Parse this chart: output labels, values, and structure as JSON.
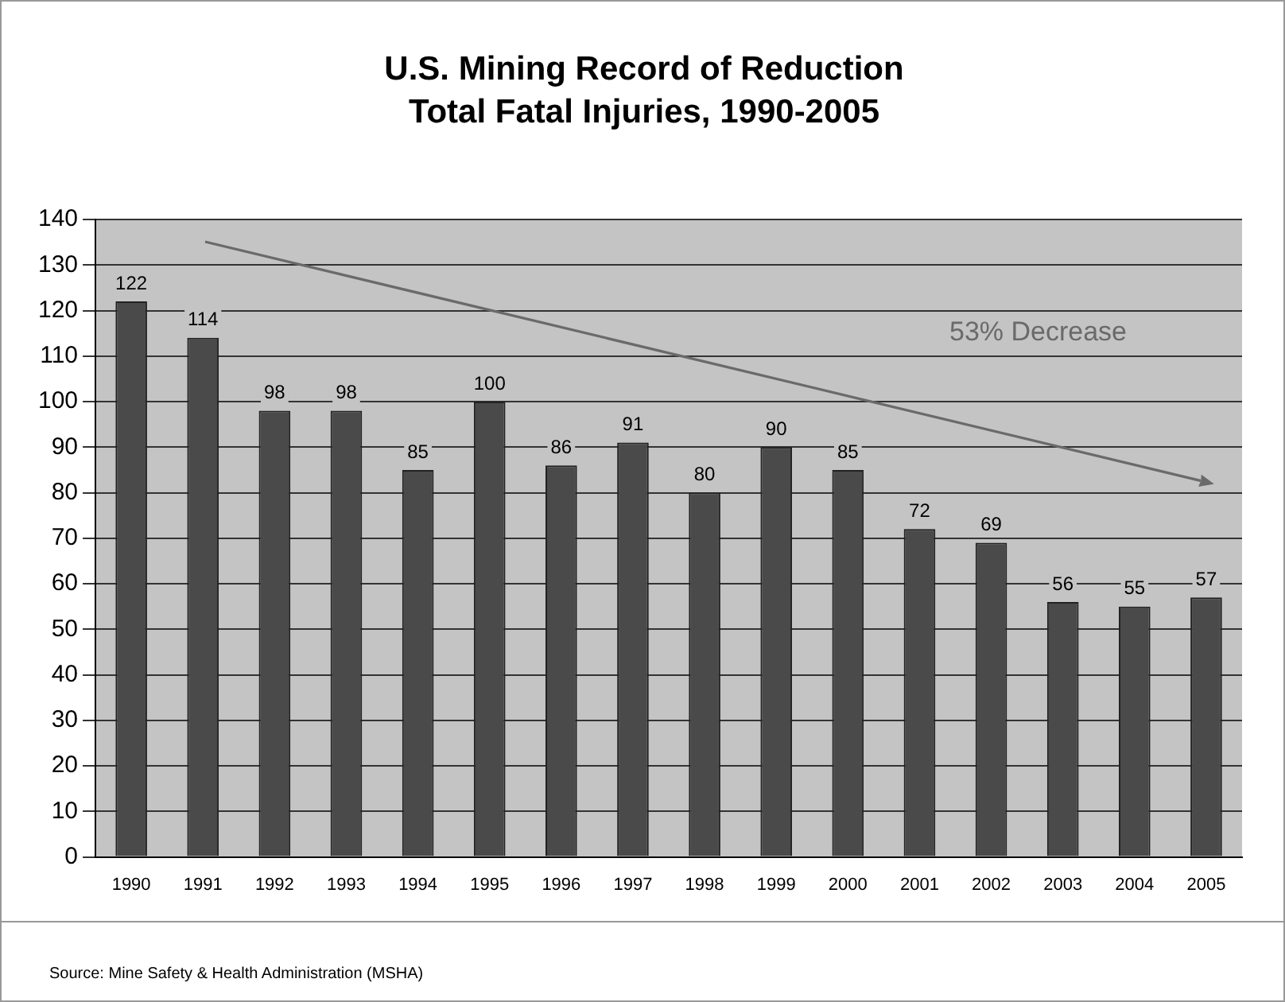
{
  "chart_data": {
    "type": "bar",
    "title": "U.S. Mining Record of Reduction",
    "subtitle": "Total Fatal Injuries, 1990-2005",
    "categories": [
      "1990",
      "1991",
      "1992",
      "1993",
      "1994",
      "1995",
      "1996",
      "1997",
      "1998",
      "1999",
      "2000",
      "2001",
      "2002",
      "2003",
      "2004",
      "2005"
    ],
    "values": [
      122,
      114,
      98,
      98,
      85,
      100,
      86,
      91,
      80,
      90,
      85,
      72,
      69,
      56,
      55,
      57
    ],
    "color": "#4a4a4a",
    "ylim": [
      0,
      140
    ],
    "yticks": [
      0,
      10,
      20,
      30,
      40,
      50,
      60,
      70,
      80,
      90,
      100,
      110,
      120,
      130,
      140
    ],
    "grid": "y",
    "data_labels": true,
    "legend": false,
    "annotations": [
      "53% Decrease",
      "Source: Mine Safety & Health Administration (MSHA)"
    ]
  }
}
